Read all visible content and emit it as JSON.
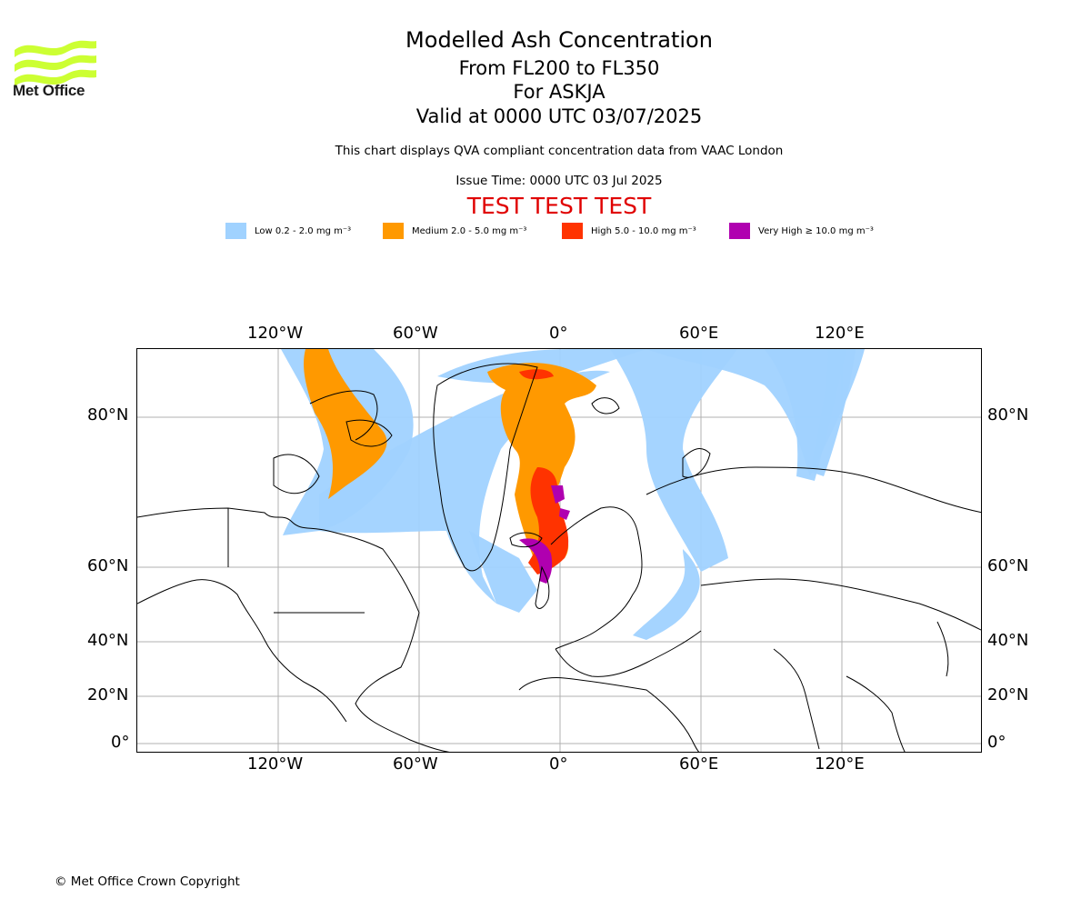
{
  "header": {
    "logo_text": "Met Office",
    "title": "Modelled Ash Concentration",
    "subtitle_levels": "From FL200 to FL350",
    "subtitle_volcano": "For ASKJA",
    "subtitle_valid": "Valid at 0000 UTC 03/07/2025",
    "description": "This chart displays QVA compliant concentration data from VAAC London",
    "issue_time": "Issue Time: 0000 UTC 03 Jul 2025",
    "test_banner": "TEST TEST TEST"
  },
  "legend": [
    {
      "label": "Low 0.2 - 2.0 mg m⁻³",
      "color": "#a0d2ff"
    },
    {
      "label": "Medium 2.0 - 5.0 mg m⁻³",
      "color": "#ff9900"
    },
    {
      "label": "High 5.0 - 10.0 mg m⁻³",
      "color": "#ff3300"
    },
    {
      "label": "Very High ≥ 10.0 mg m⁻³",
      "color": "#b000b0"
    }
  ],
  "axes": {
    "lon_labels": [
      "120°W",
      "60°W",
      "0°",
      "60°E",
      "120°E"
    ],
    "lat_labels": [
      "80°N",
      "60°N",
      "40°N",
      "20°N",
      "0°"
    ]
  },
  "footer": {
    "copyright": "© Met Office Crown Copyright"
  }
}
